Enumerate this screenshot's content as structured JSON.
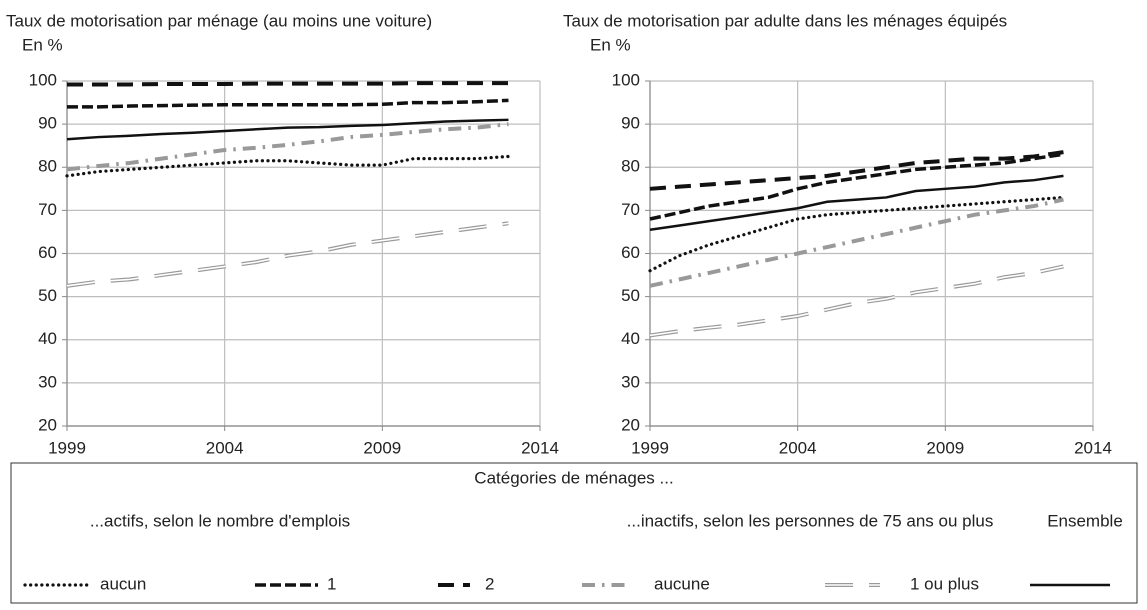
{
  "chart_data": [
    {
      "type": "line",
      "title": "Taux de motorisation par ménage (au moins une voiture)",
      "y_label": "En %",
      "x": [
        1999,
        2000,
        2001,
        2002,
        2003,
        2004,
        2005,
        2006,
        2007,
        2008,
        2009,
        2010,
        2011,
        2012,
        2013
      ],
      "xlim": [
        1999,
        2014
      ],
      "xticks": [
        1999,
        2004,
        2009,
        2014
      ],
      "ylim": [
        20,
        100
      ],
      "yticks": [
        20,
        30,
        40,
        50,
        60,
        70,
        80,
        90,
        100
      ],
      "grid": true,
      "series": [
        {
          "name": "aucun",
          "color": "#111111",
          "style": "dotted",
          "values": [
            78,
            79,
            79.5,
            80,
            80.5,
            81,
            81.5,
            81.5,
            81,
            80.5,
            80.5,
            82,
            82,
            82,
            82.5
          ]
        },
        {
          "name": "1",
          "color": "#111111",
          "style": "dashed",
          "values": [
            94,
            94,
            94.2,
            94.3,
            94.4,
            94.5,
            94.5,
            94.5,
            94.5,
            94.5,
            94.6,
            95,
            95,
            95.2,
            95.5
          ]
        },
        {
          "name": "2",
          "color": "#111111",
          "style": "long-dashed",
          "values": [
            99.2,
            99.2,
            99.2,
            99.3,
            99.3,
            99.3,
            99.4,
            99.4,
            99.4,
            99.4,
            99.4,
            99.5,
            99.5,
            99.5,
            99.5
          ]
        },
        {
          "name": "aucune",
          "color": "#999999",
          "style": "dash-dot",
          "values": [
            79.5,
            80.3,
            81,
            82,
            83,
            84,
            84.5,
            85.2,
            86,
            87,
            87.5,
            88.2,
            88.8,
            89.2,
            90
          ]
        },
        {
          "name": "1 ou plus",
          "color": "#999999",
          "style": "double",
          "values": [
            52.5,
            53.5,
            54,
            55,
            56,
            57,
            58,
            59.5,
            60.5,
            62,
            63,
            64,
            65,
            66,
            67
          ]
        },
        {
          "name": "Ensemble",
          "color": "#111111",
          "style": "solid",
          "values": [
            86.5,
            87,
            87.3,
            87.7,
            88,
            88.4,
            88.8,
            89.2,
            89.3,
            89.6,
            89.8,
            90.2,
            90.6,
            90.8,
            91
          ]
        }
      ]
    },
    {
      "type": "line",
      "title": "Taux de motorisation par adulte dans les ménages équipés",
      "y_label": "En %",
      "x": [
        1999,
        2000,
        2001,
        2002,
        2003,
        2004,
        2005,
        2006,
        2007,
        2008,
        2009,
        2010,
        2011,
        2012,
        2013
      ],
      "xlim": [
        1999,
        2014
      ],
      "xticks": [
        1999,
        2004,
        2009,
        2014
      ],
      "ylim": [
        20,
        100
      ],
      "yticks": [
        20,
        30,
        40,
        50,
        60,
        70,
        80,
        90,
        100
      ],
      "grid": true,
      "series": [
        {
          "values": [
            56,
            59.5,
            62,
            64,
            66,
            68,
            69,
            69.5,
            70,
            70.5,
            71,
            71.5,
            72,
            72.5,
            73
          ]
        },
        {
          "values": [
            68,
            69.5,
            71,
            72,
            73,
            75,
            76.5,
            77.5,
            78.5,
            79.5,
            80,
            80.5,
            81,
            82,
            83
          ]
        },
        {
          "values": [
            75,
            75.5,
            76,
            76.5,
            77,
            77.5,
            78,
            79,
            80,
            81,
            81.5,
            82,
            82,
            82.5,
            83.5
          ]
        },
        {
          "values": [
            52.5,
            54,
            55.5,
            57,
            58.5,
            60,
            61.5,
            63,
            64.5,
            66,
            67.5,
            69,
            70,
            71,
            72.5
          ]
        },
        {
          "values": [
            41,
            42,
            42.8,
            43.5,
            44.5,
            45.5,
            47,
            48.5,
            49.5,
            51,
            52,
            53,
            54.5,
            55.5,
            57
          ]
        },
        {
          "values": [
            65.5,
            66.5,
            67.5,
            68.5,
            69.5,
            70.5,
            72,
            72.5,
            73,
            74.5,
            75,
            75.5,
            76.5,
            77,
            78
          ]
        }
      ]
    }
  ],
  "legend": {
    "title": "Catégories de ménages ...",
    "groups": [
      "...actifs, selon le nombre d'emplois",
      "...inactifs, selon les personnes de 75 ans ou plus"
    ]
  }
}
